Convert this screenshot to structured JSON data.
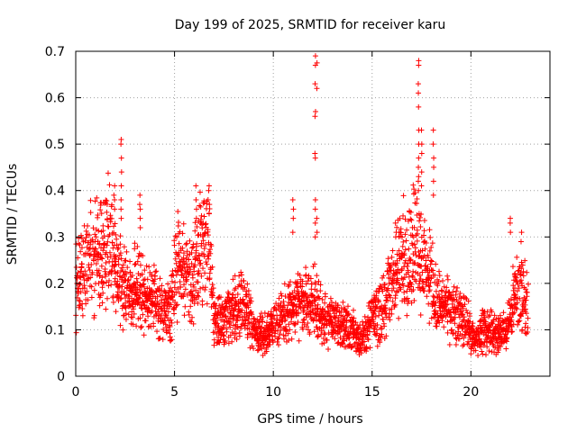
{
  "chart_data": {
    "type": "scatter",
    "title": "Day 199 of 2025, SRMTID for receiver karu",
    "xlabel": "GPS time / hours",
    "ylabel": "SRMTID / TECUs",
    "xlim": [
      0,
      24
    ],
    "ylim": [
      0,
      0.7
    ],
    "xticks": [
      0,
      5,
      10,
      15,
      20
    ],
    "yticks": [
      0,
      0.1,
      0.2,
      0.3,
      0.4,
      0.5,
      0.6,
      0.7
    ],
    "grid": true,
    "marker": "+",
    "series": [
      {
        "name": "karu",
        "color": "#ff0000",
        "envelope_x": [
          0,
          0.3,
          0.7,
          1,
          1.3,
          1.6,
          1.9,
          2.2,
          2.6,
          3,
          3.5,
          4,
          4.4,
          4.8,
          5.1,
          5.5,
          5.9,
          6.3,
          6.7,
          7,
          7.5,
          8,
          8.5,
          9,
          9.5,
          10,
          10.5,
          11,
          11.5,
          12,
          12.5,
          13,
          13.5,
          14,
          14.5,
          15,
          15.5,
          16,
          16.5,
          17,
          17.3,
          17.6,
          18,
          18.4,
          18.8,
          19.3,
          19.8,
          20.2,
          20.6,
          21,
          21.4,
          21.8,
          22.2,
          22.6,
          22.9
        ],
        "envelope_y": [
          0.2,
          0.22,
          0.25,
          0.26,
          0.27,
          0.3,
          0.24,
          0.21,
          0.19,
          0.2,
          0.18,
          0.16,
          0.14,
          0.13,
          0.24,
          0.23,
          0.21,
          0.28,
          0.3,
          0.12,
          0.11,
          0.14,
          0.16,
          0.1,
          0.09,
          0.1,
          0.13,
          0.15,
          0.16,
          0.17,
          0.12,
          0.12,
          0.11,
          0.1,
          0.08,
          0.12,
          0.14,
          0.2,
          0.25,
          0.27,
          0.3,
          0.24,
          0.2,
          0.15,
          0.14,
          0.13,
          0.12,
          0.07,
          0.1,
          0.1,
          0.09,
          0.1,
          0.17,
          0.18,
          0.16
        ],
        "spikes": [
          {
            "x": 2.3,
            "values": [
              0.51,
              0.5,
              0.47,
              0.44,
              0.41,
              0.38,
              0.36,
              0.34
            ]
          },
          {
            "x": 1.95,
            "values": [
              0.41,
              0.39,
              0.38,
              0.36
            ]
          },
          {
            "x": 3.25,
            "values": [
              0.39,
              0.37,
              0.36,
              0.34,
              0.32
            ]
          },
          {
            "x": 6.1,
            "values": [
              0.41,
              0.38,
              0.36,
              0.34
            ]
          },
          {
            "x": 6.75,
            "values": [
              0.41,
              0.4,
              0.37,
              0.35
            ]
          },
          {
            "x": 11.0,
            "values": [
              0.38,
              0.36,
              0.34,
              0.31
            ]
          },
          {
            "x": 12.12,
            "values": [
              0.69,
              0.67,
              0.63,
              0.57,
              0.56,
              0.48,
              0.47,
              0.38,
              0.36,
              0.33,
              0.3
            ]
          },
          {
            "x": 12.2,
            "values": [
              0.675,
              0.62,
              0.34,
              0.31
            ]
          },
          {
            "x": 17.35,
            "values": [
              0.68,
              0.67,
              0.63,
              0.61,
              0.58,
              0.53,
              0.5,
              0.47,
              0.45,
              0.43,
              0.42,
              0.4
            ]
          },
          {
            "x": 17.5,
            "values": [
              0.53,
              0.5,
              0.48,
              0.44,
              0.41
            ]
          },
          {
            "x": 18.1,
            "values": [
              0.53,
              0.5,
              0.47,
              0.45,
              0.42,
              0.39
            ]
          },
          {
            "x": 16.2,
            "values": [
              0.33,
              0.31,
              0.3
            ]
          },
          {
            "x": 22.0,
            "values": [
              0.34,
              0.33,
              0.31
            ]
          },
          {
            "x": 22.55,
            "values": [
              0.31,
              0.29
            ]
          }
        ]
      }
    ]
  }
}
